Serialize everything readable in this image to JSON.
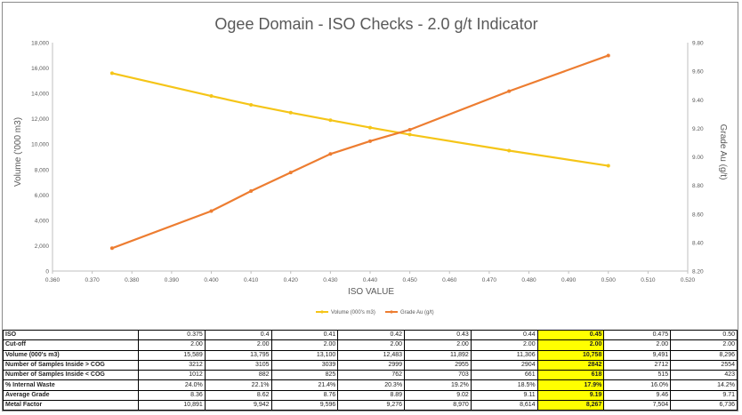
{
  "chart_data": {
    "type": "line",
    "title": "Ogee Domain - ISO Checks - 2.0 g/t Indicator",
    "xlabel": "ISO VALUE",
    "ylabel": "Volume ('000 m3)",
    "y2label": "Grade Au (g/t)",
    "xlim": [
      0.36,
      0.52
    ],
    "xticks": [
      "0.360",
      "0.370",
      "0.380",
      "0.390",
      "0.400",
      "0.410",
      "0.420",
      "0.430",
      "0.440",
      "0.450",
      "0.460",
      "0.470",
      "0.480",
      "0.490",
      "0.500",
      "0.510",
      "0.520"
    ],
    "ylim": [
      0,
      18000
    ],
    "yticks": [
      "0",
      "2,000",
      "4,000",
      "6,000",
      "8,000",
      "10,000",
      "12,000",
      "14,000",
      "16,000",
      "18,000"
    ],
    "y2lim": [
      8.2,
      9.8
    ],
    "y2ticks": [
      "8.20",
      "8.40",
      "8.60",
      "8.80",
      "9.00",
      "9.20",
      "9.40",
      "9.60",
      "9.80"
    ],
    "grid": false,
    "legend_position": "bottom",
    "x": [
      0.375,
      0.4,
      0.41,
      0.42,
      0.43,
      0.44,
      0.45,
      0.475,
      0.5
    ],
    "series": [
      {
        "name": "Volume (000's m3)",
        "axis": "left",
        "color": "#f5c518",
        "values": [
          15589,
          13795,
          13100,
          12483,
          11892,
          11306,
          10758,
          9491,
          8296
        ]
      },
      {
        "name": "Grade Au (g/t)",
        "axis": "right",
        "color": "#ed7d31",
        "values": [
          8.36,
          8.62,
          8.76,
          8.89,
          9.02,
          9.11,
          9.19,
          9.46,
          9.71
        ]
      }
    ]
  },
  "table": {
    "rows": [
      {
        "label": "ISO",
        "cells": [
          "0.375",
          "0.4",
          "0.41",
          "0.42",
          "0.43",
          "0.44",
          "0.45",
          "0.475",
          "0.50"
        ]
      },
      {
        "label": "Cut-off",
        "cells": [
          "2.00",
          "2.00",
          "2.00",
          "2.00",
          "2.00",
          "2.00",
          "2.00",
          "2.00",
          "2.00"
        ]
      },
      {
        "label": "Volume (000's m3)",
        "cells": [
          "15,589",
          "13,795",
          "13,100",
          "12,483",
          "11,892",
          "11,306",
          "10,758",
          "9,491",
          "8,296"
        ]
      },
      {
        "label": "Number of Samples Inside > COG",
        "cells": [
          "3212",
          "3105",
          "3039",
          "2999",
          "2955",
          "2904",
          "2842",
          "2712",
          "2554"
        ]
      },
      {
        "label": "Number of Samples Inside < COG",
        "cells": [
          "1012",
          "882",
          "825",
          "762",
          "703",
          "661",
          "618",
          "515",
          "423"
        ]
      },
      {
        "label": "% Internal Waste",
        "cells": [
          "24.0%",
          "22.1%",
          "21.4%",
          "20.3%",
          "19.2%",
          "18.5%",
          "17.9%",
          "16.0%",
          "14.2%"
        ]
      },
      {
        "label": "Average Grade",
        "cells": [
          "8.36",
          "8.62",
          "8.76",
          "8.89",
          "9.02",
          "9.11",
          "9.19",
          "9.46",
          "9.71"
        ]
      },
      {
        "label": "Metal Factor",
        "cells": [
          "10,891",
          "9,942",
          "9,596",
          "9,276",
          "8,970",
          "8,614",
          "8,267",
          "7,504",
          "6,736"
        ]
      }
    ],
    "highlight_column_index": 6,
    "highlight_color": "#ffff00"
  }
}
